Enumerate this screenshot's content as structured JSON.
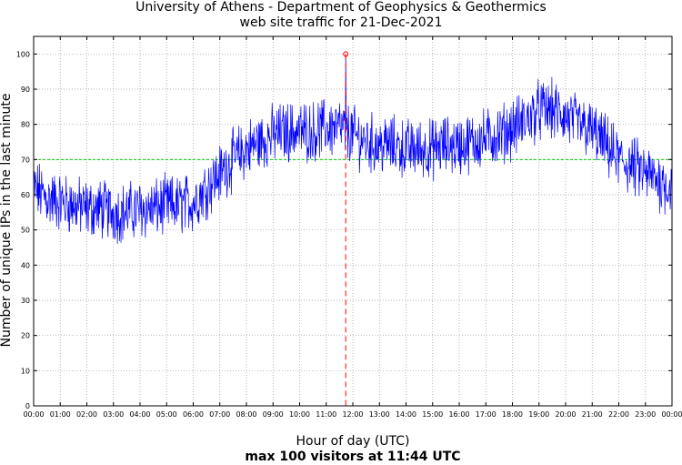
{
  "chart_data": {
    "type": "line",
    "title": "University of Athens - Department of Geophysics & Geothermics",
    "subtitle": "web site traffic for 21-Dec-2021",
    "xlabel": "Hour of day (UTC)",
    "xsub": "max 100 visitors at 11:44 UTC",
    "ylabel": "Number of unique IPs in the last minute",
    "xlim": [
      0,
      24
    ],
    "ylim": [
      0,
      105
    ],
    "yticks": [
      0,
      10,
      20,
      30,
      40,
      50,
      60,
      70,
      80,
      90,
      100
    ],
    "xticks": [
      "00:00",
      "01:00",
      "02:00",
      "03:00",
      "04:00",
      "05:00",
      "06:00",
      "07:00",
      "08:00",
      "09:00",
      "10:00",
      "11:00",
      "12:00",
      "13:00",
      "14:00",
      "15:00",
      "16:00",
      "17:00",
      "18:00",
      "19:00",
      "20:00",
      "21:00",
      "22:00",
      "23:00",
      "00:00"
    ],
    "grid": true,
    "series": [
      {
        "color": "#0000ff",
        "x": [
          0,
          0.5,
          1,
          1.5,
          2,
          2.5,
          3,
          3.5,
          4,
          4.5,
          5,
          5.5,
          6,
          6.5,
          7,
          7.5,
          8,
          8.5,
          9,
          9.5,
          10,
          10.5,
          11,
          11.5,
          12,
          12.5,
          13,
          13.5,
          14,
          14.5,
          15,
          15.5,
          16,
          16.5,
          17,
          17.5,
          18,
          18.5,
          19,
          19.5,
          20,
          20.5,
          21,
          21.5,
          22,
          22.5,
          23,
          23.5,
          24
        ],
        "y": [
          62,
          59,
          58,
          57,
          56,
          56,
          55,
          55,
          56,
          56,
          57,
          57,
          58,
          62,
          66,
          70,
          73,
          75,
          77,
          78,
          78,
          78,
          79,
          79,
          77,
          75,
          74,
          74,
          73,
          73,
          73,
          74,
          74,
          75,
          76,
          77,
          79,
          81,
          84,
          84,
          82,
          80,
          78,
          74,
          70,
          68,
          66,
          64,
          62
        ]
      }
    ],
    "threshold": {
      "value": 70,
      "color": "#00cc00"
    },
    "peak": {
      "x": 11.733,
      "y": 100,
      "color": "#ff0000"
    }
  }
}
